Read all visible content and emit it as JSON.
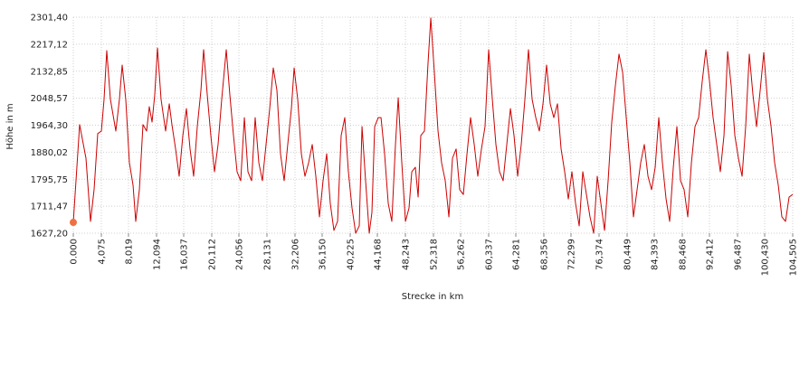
{
  "chart_data": {
    "type": "line",
    "x_label": "Strecke in km",
    "y_label": "Höhe in m",
    "x": [
      0.0,
      0.92,
      1.84,
      2.5,
      3.02,
      3.55,
      4.08,
      4.47,
      4.86,
      5.39,
      6.18,
      6.7,
      7.1,
      7.62,
      8.15,
      8.68,
      9.07,
      9.6,
      10.12,
      10.65,
      11.04,
      11.44,
      11.83,
      12.23,
      12.75,
      13.41,
      13.94,
      14.33,
      14.86,
      15.38,
      15.91,
      16.43,
      16.96,
      17.48,
      18.01,
      18.54,
      18.93,
      19.46,
      19.98,
      20.51,
      21.03,
      21.56,
      22.22,
      22.74,
      23.27,
      23.79,
      24.32,
      24.85,
      25.37,
      25.9,
      26.42,
      26.95,
      27.47,
      28.0,
      28.53,
      29.05,
      29.58,
      30.1,
      30.63,
      31.15,
      31.68,
      32.08,
      32.6,
      33.13,
      33.65,
      34.18,
      34.71,
      35.23,
      35.76,
      36.28,
      36.81,
      37.33,
      37.86,
      38.39,
      38.91,
      39.44,
      39.96,
      40.49,
      41.02,
      41.54,
      41.94,
      42.46,
      42.99,
      43.38,
      43.78,
      44.3,
      44.7,
      45.22,
      45.75,
      46.27,
      46.8,
      47.2,
      47.72,
      48.25,
      48.77,
      49.17,
      49.69,
      50.09,
      50.48,
      51.01,
      51.53,
      51.93,
      52.45,
      52.98,
      53.5,
      54.03,
      54.56,
      55.08,
      55.61,
      56.13,
      56.66,
      57.19,
      57.71,
      58.24,
      58.76,
      59.29,
      59.81,
      60.34,
      60.87,
      61.39,
      61.92,
      62.44,
      62.97,
      63.5,
      64.02,
      64.55,
      65.07,
      65.6,
      66.12,
      66.65,
      67.18,
      67.7,
      68.23,
      68.75,
      69.28,
      69.8,
      70.33,
      70.86,
      71.38,
      71.91,
      72.43,
      72.96,
      73.49,
      74.01,
      74.54,
      75.06,
      75.59,
      76.11,
      76.64,
      77.17,
      77.69,
      78.22,
      78.74,
      79.27,
      79.8,
      80.32,
      80.85,
      81.37,
      81.9,
      82.42,
      82.95,
      83.48,
      84.0,
      84.53,
      85.05,
      85.58,
      86.11,
      86.63,
      87.16,
      87.68,
      88.21,
      88.73,
      89.26,
      89.79,
      90.31,
      90.84,
      91.36,
      91.89,
      92.42,
      92.94,
      93.47,
      93.99,
      94.52,
      95.05,
      95.57,
      96.1,
      96.62,
      97.15,
      97.67,
      98.2,
      98.73,
      99.25,
      99.78,
      100.3,
      100.83,
      101.36,
      101.88,
      102.41,
      102.93,
      103.46,
      103.98,
      104.5
    ],
    "series": [
      {
        "color": "#cc0000",
        "marker_color": "#f07040",
        "values": [
          1661,
          1966,
          1861,
          1664,
          1763,
          1938,
          1946,
          2045,
          2197,
          2045,
          1946,
          2045,
          2152,
          2045,
          1847,
          1777,
          1664,
          1763,
          1966,
          1946,
          2022,
          1974,
          2059,
          2205,
          2045,
          1946,
          2031,
          1966,
          1890,
          1805,
          1932,
          2016,
          1890,
          1805,
          1960,
          2073,
          2200,
          2059,
          1932,
          1819,
          1904,
          2045,
          2200,
          2059,
          1932,
          1819,
          1791,
          1988,
          1819,
          1791,
          1988,
          1847,
          1791,
          1904,
          2016,
          2143,
          2073,
          1875,
          1791,
          1904,
          2016,
          2143,
          2045,
          1875,
          1805,
          1847,
          1904,
          1805,
          1678,
          1791,
          1875,
          1720,
          1636,
          1664,
          1932,
          1988,
          1819,
          1706,
          1627,
          1650,
          1960,
          1791,
          1627,
          1692,
          1960,
          1988,
          1988,
          1875,
          1720,
          1664,
          1904,
          2050,
          1847,
          1664,
          1706,
          1819,
          1833,
          1740,
          1932,
          1946,
          2158,
          2299,
          2129,
          1946,
          1847,
          1791,
          1678,
          1861,
          1890,
          1763,
          1748,
          1875,
          1988,
          1904,
          1805,
          1890,
          1960,
          2200,
          2045,
          1904,
          1819,
          1791,
          1904,
          2016,
          1932,
          1805,
          1904,
          2045,
          2200,
          2045,
          1988,
          1946,
          2031,
          2152,
          2031,
          1988,
          2031,
          1890,
          1819,
          1734,
          1819,
          1720,
          1650,
          1819,
          1748,
          1678,
          1627,
          1805,
          1720,
          1636,
          1791,
          1974,
          2087,
          2186,
          2129,
          1988,
          1847,
          1678,
          1763,
          1847,
          1904,
          1805,
          1763,
          1833,
          1988,
          1847,
          1734,
          1664,
          1833,
          1960,
          1791,
          1763,
          1678,
          1847,
          1960,
          1988,
          2101,
          2200,
          2101,
          1988,
          1904,
          1819,
          1932,
          2194,
          2087,
          1932,
          1861,
          1805,
          1960,
          2186,
          2059,
          1960,
          2073,
          2191,
          2045,
          1960,
          1847,
          1777,
          1678,
          1664,
          1740,
          1748
        ]
      }
    ],
    "xlim": [
      0,
      104.505
    ],
    "xticks": [
      {
        "value": 0,
        "label": "0.000"
      },
      {
        "value": 4.075,
        "label": "4,075"
      },
      {
        "value": 8.019,
        "label": "8,019"
      },
      {
        "value": 12.094,
        "label": "12,094"
      },
      {
        "value": 16.037,
        "label": "16,037"
      },
      {
        "value": 20.112,
        "label": "20,112"
      },
      {
        "value": 24.056,
        "label": "24,056"
      },
      {
        "value": 28.131,
        "label": "28,131"
      },
      {
        "value": 32.206,
        "label": "32,206"
      },
      {
        "value": 36.15,
        "label": "36,150"
      },
      {
        "value": 40.225,
        "label": "40,225"
      },
      {
        "value": 44.168,
        "label": "44,168"
      },
      {
        "value": 48.243,
        "label": "48,243"
      },
      {
        "value": 52.318,
        "label": "52,318"
      },
      {
        "value": 56.262,
        "label": "56,262"
      },
      {
        "value": 60.337,
        "label": "60,337"
      },
      {
        "value": 64.281,
        "label": "64,281"
      },
      {
        "value": 68.356,
        "label": "68,356"
      },
      {
        "value": 72.299,
        "label": "72,299"
      },
      {
        "value": 76.374,
        "label": "76,374"
      },
      {
        "value": 80.449,
        "label": "80,449"
      },
      {
        "value": 84.393,
        "label": "84,393"
      },
      {
        "value": 88.468,
        "label": "88,468"
      },
      {
        "value": 92.412,
        "label": "92,412"
      },
      {
        "value": 96.487,
        "label": "96,487"
      },
      {
        "value": 100.43,
        "label": "100,430"
      },
      {
        "value": 104.505,
        "label": "104,505"
      }
    ],
    "ylim": [
      1627.2,
      2301.4
    ],
    "yticks": [
      {
        "value": 1627.2,
        "label": "1627,20"
      },
      {
        "value": 1711.47,
        "label": "1711,47"
      },
      {
        "value": 1795.75,
        "label": "1795,75"
      },
      {
        "value": 1880.02,
        "label": "1880,02"
      },
      {
        "value": 1964.3,
        "label": "1964,30"
      },
      {
        "value": 2048.57,
        "label": "2048,57"
      },
      {
        "value": 2132.85,
        "label": "2132,85"
      },
      {
        "value": 2217.12,
        "label": "2217,12"
      },
      {
        "value": 2301.4,
        "label": "2301,40"
      }
    ],
    "grid": true
  }
}
